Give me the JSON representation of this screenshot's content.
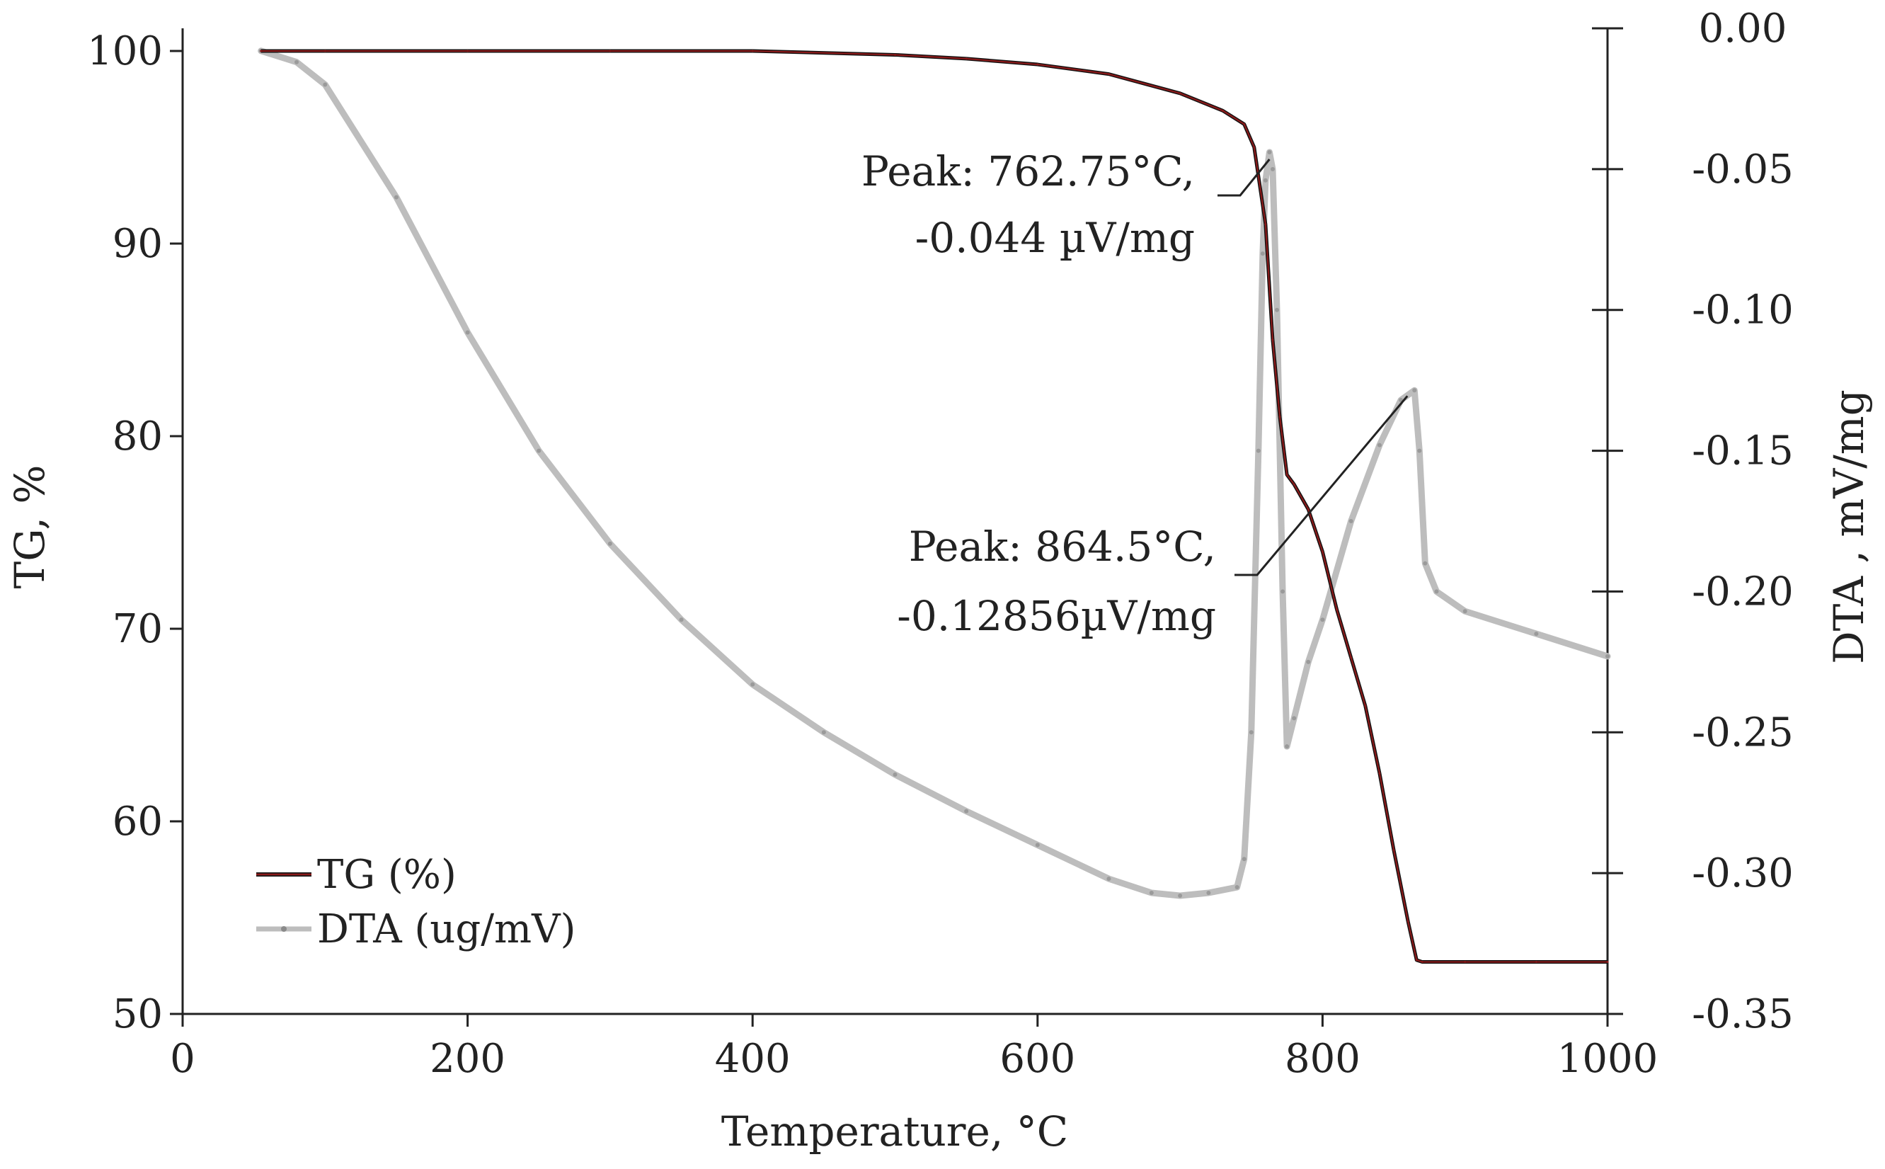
{
  "chart_data": {
    "type": "line",
    "title": "",
    "xlabel": "Temperature, °C",
    "ylabel": "TG, %",
    "y2label": "DTA , mV/mg",
    "xlim": [
      0,
      1000
    ],
    "ylim": [
      50,
      100
    ],
    "y2lim": [
      -0.35,
      0.0
    ],
    "x_ticks": [
      0,
      200,
      400,
      600,
      800,
      1000
    ],
    "y_ticks": [
      50,
      60,
      70,
      80,
      90,
      100
    ],
    "y2_ticks": [
      0.0,
      -0.05,
      -0.1,
      -0.15,
      -0.2,
      -0.25,
      -0.3,
      -0.35
    ],
    "x_tick_labels": [
      "0",
      "200",
      "400",
      "600",
      "800",
      "1000"
    ],
    "y_tick_labels": [
      "50",
      "60",
      "70",
      "80",
      "90",
      "100"
    ],
    "y2_tick_labels": [
      "0.00",
      "-0.05",
      "-0.10",
      "-0.15",
      "-0.20",
      "-0.25",
      "-0.30",
      "-0.35"
    ],
    "grid": false,
    "legend_position": "bottom-left",
    "series": [
      {
        "name": "TG (%)",
        "axis": "left",
        "color": "#8b1a1a",
        "x": [
          55,
          100,
          200,
          300,
          400,
          500,
          550,
          600,
          650,
          700,
          730,
          745,
          752,
          760,
          765,
          770,
          775,
          780,
          790,
          800,
          810,
          820,
          830,
          840,
          850,
          860,
          866,
          870,
          900,
          950,
          1000
        ],
        "y": [
          100,
          100,
          100,
          100,
          100,
          99.8,
          99.6,
          99.3,
          98.8,
          97.8,
          96.9,
          96.2,
          95,
          91,
          85,
          81,
          78,
          77.5,
          76.2,
          74,
          71,
          68.5,
          66,
          62.5,
          58.5,
          54.8,
          52.8,
          52.7,
          52.7,
          52.7,
          52.7
        ]
      },
      {
        "name": "DTA (ug/mV)",
        "axis": "right",
        "color": "#bdbdbd",
        "x": [
          55,
          80,
          100,
          150,
          200,
          250,
          300,
          350,
          400,
          450,
          500,
          550,
          600,
          650,
          680,
          700,
          720,
          740,
          745,
          750,
          755,
          758,
          760,
          762.75,
          765,
          768,
          772,
          775,
          780,
          790,
          800,
          820,
          840,
          855,
          864.5,
          868,
          872,
          880,
          900,
          950,
          1000
        ],
        "y": [
          -0.008,
          -0.012,
          -0.02,
          -0.06,
          -0.108,
          -0.15,
          -0.183,
          -0.21,
          -0.233,
          -0.25,
          -0.265,
          -0.278,
          -0.29,
          -0.302,
          -0.307,
          -0.308,
          -0.307,
          -0.305,
          -0.295,
          -0.25,
          -0.15,
          -0.08,
          -0.054,
          -0.044,
          -0.05,
          -0.1,
          -0.2,
          -0.255,
          -0.245,
          -0.225,
          -0.21,
          -0.175,
          -0.148,
          -0.132,
          -0.12856,
          -0.15,
          -0.19,
          -0.2,
          -0.207,
          -0.215,
          -0.223
        ]
      }
    ],
    "annotations": [
      {
        "lines": [
          "Peak: 762.75°C,",
          "-0.044 µV/mg"
        ],
        "x": 762.75,
        "y2": -0.044
      },
      {
        "lines": [
          "Peak: 864.5°C,",
          "-0.12856µV/mg"
        ],
        "x": 864.5,
        "y2": -0.12856
      }
    ]
  }
}
